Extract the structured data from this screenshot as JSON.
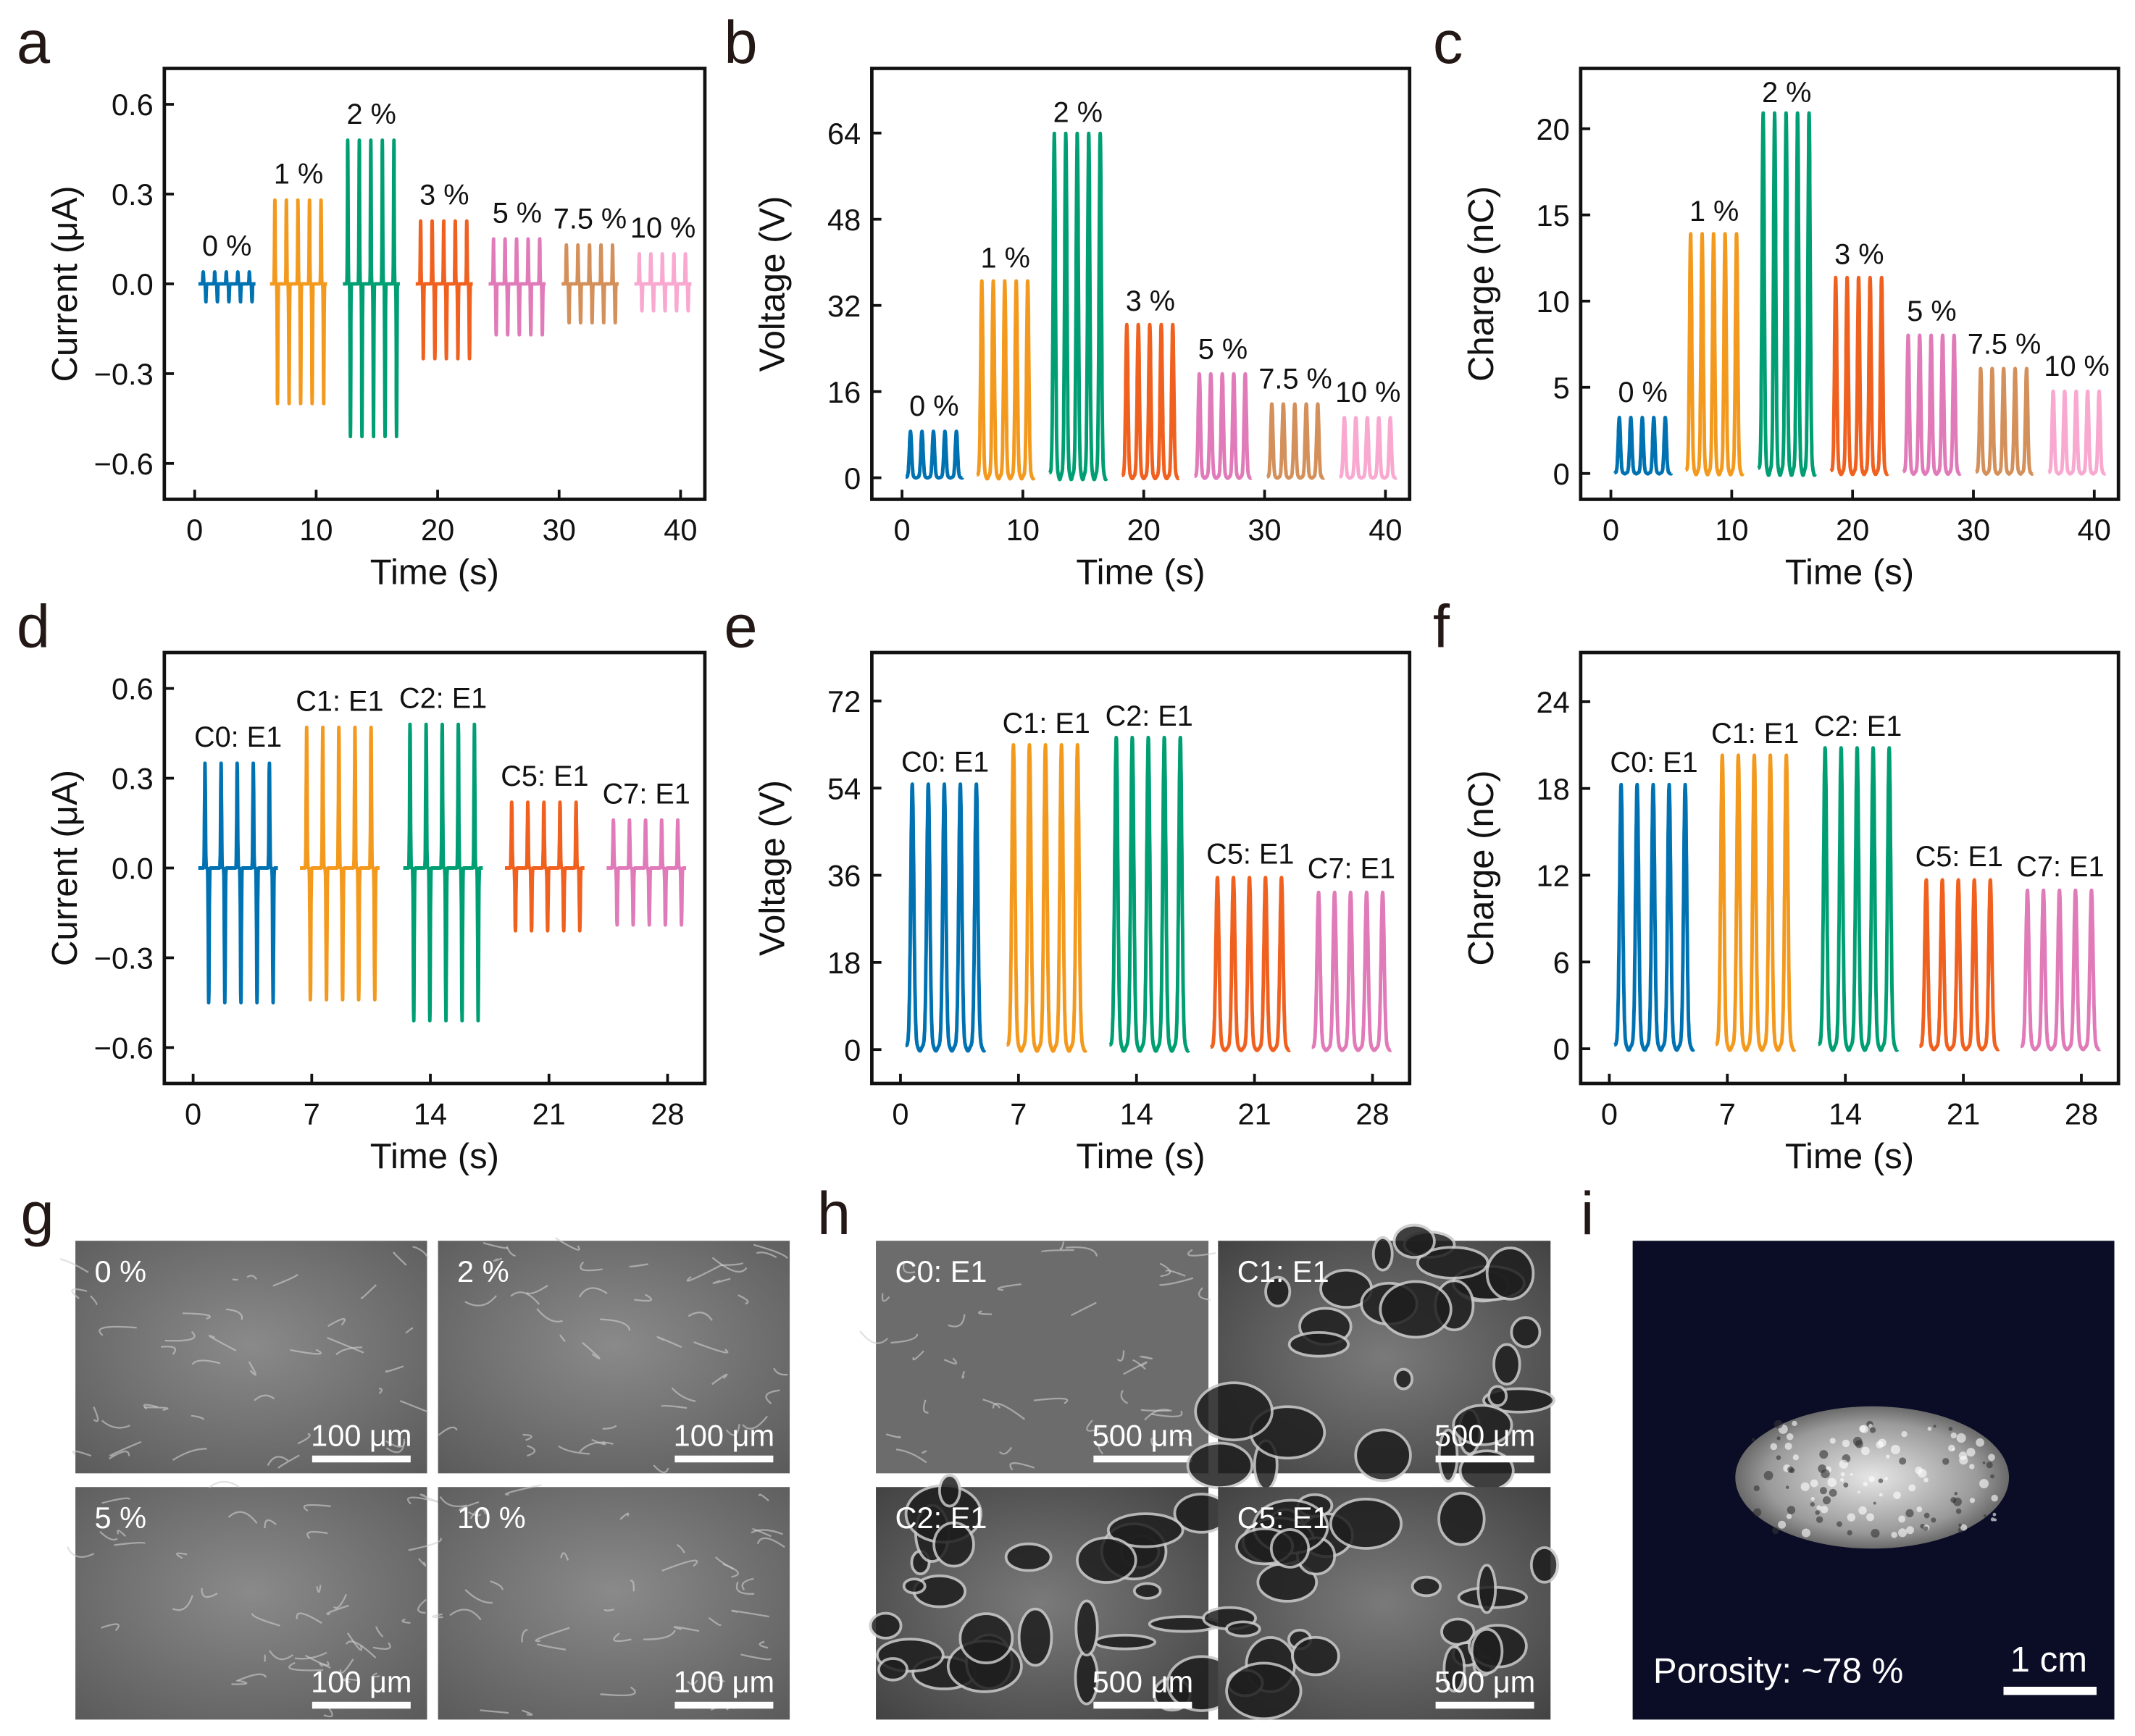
{
  "chart_data": [
    {
      "panel": "a",
      "type": "line",
      "kind": "current",
      "xlabel": "Time (s)",
      "ylabel": "Current (μA)",
      "xlim": [
        -2.5,
        42
      ],
      "ylim": [
        -0.72,
        0.72
      ],
      "xticks": [
        0,
        10,
        20,
        30,
        40
      ],
      "xtick_labels": [
        "0",
        "10",
        "20",
        "30",
        "40"
      ],
      "yticks": [
        0.6,
        0.3,
        0,
        -0.3,
        -0.6
      ],
      "ytick_labels": [
        "0.6",
        "0.3",
        "0.0",
        "−0.3",
        "−0.6"
      ],
      "series": [
        {
          "name": "0 %",
          "color": "#0072b2",
          "start": 0.3,
          "pos": 0.04,
          "neg": -0.06
        },
        {
          "name": "1 %",
          "color": "#f39a1e",
          "start": 6.2,
          "pos": 0.28,
          "neg": -0.4
        },
        {
          "name": "2 %",
          "color": "#009e73",
          "start": 12.2,
          "pos": 0.48,
          "neg": -0.51
        },
        {
          "name": "3 %",
          "color": "#f0601e",
          "start": 18.2,
          "pos": 0.21,
          "neg": -0.25
        },
        {
          "name": "5 %",
          "color": "#e07ab8",
          "start": 24.2,
          "pos": 0.15,
          "neg": -0.17
        },
        {
          "name": "7.5 %",
          "color": "#d4905a",
          "start": 30.2,
          "pos": 0.13,
          "neg": -0.13
        },
        {
          "name": "10 %",
          "color": "#f9a8d0",
          "start": 36.2,
          "pos": 0.1,
          "neg": -0.09
        }
      ]
    },
    {
      "panel": "b",
      "type": "line",
      "kind": "pulse",
      "xlabel": "Time (s)",
      "ylabel": "Voltage (V)",
      "xlim": [
        -2.5,
        42
      ],
      "ylim": [
        -4,
        76
      ],
      "xticks": [
        0,
        10,
        20,
        30,
        40
      ],
      "xtick_labels": [
        "0",
        "10",
        "20",
        "30",
        "40"
      ],
      "yticks": [
        0,
        16,
        32,
        48,
        64
      ],
      "ytick_labels": [
        "0",
        "16",
        "32",
        "48",
        "64"
      ],
      "series": [
        {
          "name": "0 %",
          "color": "#0072b2",
          "start": 0.3,
          "pos": 8.5
        },
        {
          "name": "1 %",
          "color": "#f39a1e",
          "start": 6.2,
          "pos": 36
        },
        {
          "name": "2 %",
          "color": "#009e73",
          "start": 12.2,
          "pos": 63
        },
        {
          "name": "3 %",
          "color": "#f0601e",
          "start": 18.2,
          "pos": 28
        },
        {
          "name": "5 %",
          "color": "#e07ab8",
          "start": 24.2,
          "pos": 19
        },
        {
          "name": "7.5 %",
          "color": "#d4905a",
          "start": 30.2,
          "pos": 13.5
        },
        {
          "name": "10 %",
          "color": "#f9a8d0",
          "start": 36.2,
          "pos": 11
        }
      ]
    },
    {
      "panel": "c",
      "type": "line",
      "kind": "pulse",
      "xlabel": "Time (s)",
      "ylabel": "Charge (nC)",
      "xlim": [
        -2.5,
        42
      ],
      "ylim": [
        -1.5,
        23.5
      ],
      "xticks": [
        0,
        10,
        20,
        30,
        40
      ],
      "xtick_labels": [
        "0",
        "10",
        "20",
        "30",
        "40"
      ],
      "yticks": [
        0,
        5,
        10,
        15,
        20
      ],
      "ytick_labels": [
        "0",
        "5",
        "10",
        "15",
        "20"
      ],
      "series": [
        {
          "name": "0 %",
          "color": "#0072b2",
          "start": 0.3,
          "pos": 3.2
        },
        {
          "name": "1 %",
          "color": "#f39a1e",
          "start": 6.2,
          "pos": 13.7
        },
        {
          "name": "2 %",
          "color": "#009e73",
          "start": 12.2,
          "pos": 20.6
        },
        {
          "name": "3 %",
          "color": "#f0601e",
          "start": 18.2,
          "pos": 11.2
        },
        {
          "name": "5 %",
          "color": "#e07ab8",
          "start": 24.2,
          "pos": 7.9
        },
        {
          "name": "7.5 %",
          "color": "#d4905a",
          "start": 30.2,
          "pos": 6.0
        },
        {
          "name": "10 %",
          "color": "#f9a8d0",
          "start": 36.2,
          "pos": 4.7
        }
      ]
    },
    {
      "panel": "d",
      "type": "line",
      "kind": "current",
      "xlabel": "Time (s)",
      "ylabel": "Current (μA)",
      "xlim": [
        -1.7,
        30.2
      ],
      "ylim": [
        -0.72,
        0.72
      ],
      "xticks": [
        0,
        7,
        14,
        21,
        28
      ],
      "xtick_labels": [
        "0",
        "7",
        "14",
        "21",
        "28"
      ],
      "yticks": [
        0.6,
        0.3,
        0,
        -0.3,
        -0.6
      ],
      "ytick_labels": [
        "0.6",
        "0.3",
        "0.0",
        "−0.3",
        "−0.6"
      ],
      "series": [
        {
          "name": "C0: E1",
          "color": "#0072b2",
          "start": 0.3,
          "pos": 0.35,
          "neg": -0.45
        },
        {
          "name": "C1: E1",
          "color": "#f39a1e",
          "start": 6.3,
          "pos": 0.47,
          "neg": -0.44
        },
        {
          "name": "C2: E1",
          "color": "#009e73",
          "start": 12.4,
          "pos": 0.48,
          "neg": -0.51
        },
        {
          "name": "C5: E1",
          "color": "#f0601e",
          "start": 18.4,
          "pos": 0.22,
          "neg": -0.21
        },
        {
          "name": "C7: E1",
          "color": "#e07ab8",
          "start": 24.4,
          "pos": 0.16,
          "neg": -0.19
        }
      ]
    },
    {
      "panel": "e",
      "type": "line",
      "kind": "pulse",
      "xlabel": "Time (s)",
      "ylabel": "Voltage (V)",
      "xlim": [
        -1.7,
        30.2
      ],
      "ylim": [
        -7,
        82
      ],
      "xticks": [
        0,
        7,
        14,
        21,
        28
      ],
      "xtick_labels": [
        "0",
        "7",
        "14",
        "21",
        "28"
      ],
      "yticks": [
        0,
        18,
        36,
        54,
        72
      ],
      "ytick_labels": [
        "0",
        "18",
        "36",
        "54",
        "72"
      ],
      "series": [
        {
          "name": "C0: E1",
          "color": "#0072b2",
          "start": 0.3,
          "pos": 54
        },
        {
          "name": "C1: E1",
          "color": "#f39a1e",
          "start": 6.3,
          "pos": 62
        },
        {
          "name": "C2: E1",
          "color": "#009e73",
          "start": 12.4,
          "pos": 63.5
        },
        {
          "name": "C5: E1",
          "color": "#f0601e",
          "start": 18.4,
          "pos": 35
        },
        {
          "name": "C7: E1",
          "color": "#e07ab8",
          "start": 24.4,
          "pos": 32
        }
      ]
    },
    {
      "panel": "f",
      "type": "line",
      "kind": "pulse",
      "xlabel": "Time (s)",
      "ylabel": "Charge (nC)",
      "xlim": [
        -1.7,
        30.2
      ],
      "ylim": [
        -2.4,
        27.4
      ],
      "xticks": [
        0,
        7,
        14,
        21,
        28
      ],
      "xtick_labels": [
        "0",
        "7",
        "14",
        "21",
        "28"
      ],
      "yticks": [
        0,
        6,
        12,
        18,
        24
      ],
      "ytick_labels": [
        "0",
        "6",
        "12",
        "18",
        "24"
      ],
      "series": [
        {
          "name": "C0: E1",
          "color": "#0072b2",
          "start": 0.3,
          "pos": 18
        },
        {
          "name": "C1: E1",
          "color": "#f39a1e",
          "start": 6.3,
          "pos": 20
        },
        {
          "name": "C2: E1",
          "color": "#009e73",
          "start": 12.4,
          "pos": 20.5
        },
        {
          "name": "C5: E1",
          "color": "#f0601e",
          "start": 18.4,
          "pos": 11.5
        },
        {
          "name": "C7: E1",
          "color": "#e07ab8",
          "start": 24.4,
          "pos": 10.8
        }
      ]
    }
  ],
  "image_panels": {
    "g": {
      "letter": "g",
      "images": [
        {
          "label": "0 %",
          "scale": "100 μm"
        },
        {
          "label": "2 %",
          "scale": "100 μm"
        },
        {
          "label": "5 %",
          "scale": "100 μm"
        },
        {
          "label": "10 %",
          "scale": "100 μm"
        }
      ]
    },
    "h": {
      "letter": "h",
      "images": [
        {
          "label": "C0: E1",
          "scale": "500 μm"
        },
        {
          "label": "C1: E1",
          "scale": "500 μm"
        },
        {
          "label": "C2: E1",
          "scale": "500 μm"
        },
        {
          "label": "C5: E1",
          "scale": "500 μm"
        }
      ]
    },
    "i": {
      "letter": "i",
      "porosity": "Porosity: ~78 %",
      "scale": "1 cm",
      "background": "#0b0d26"
    }
  }
}
